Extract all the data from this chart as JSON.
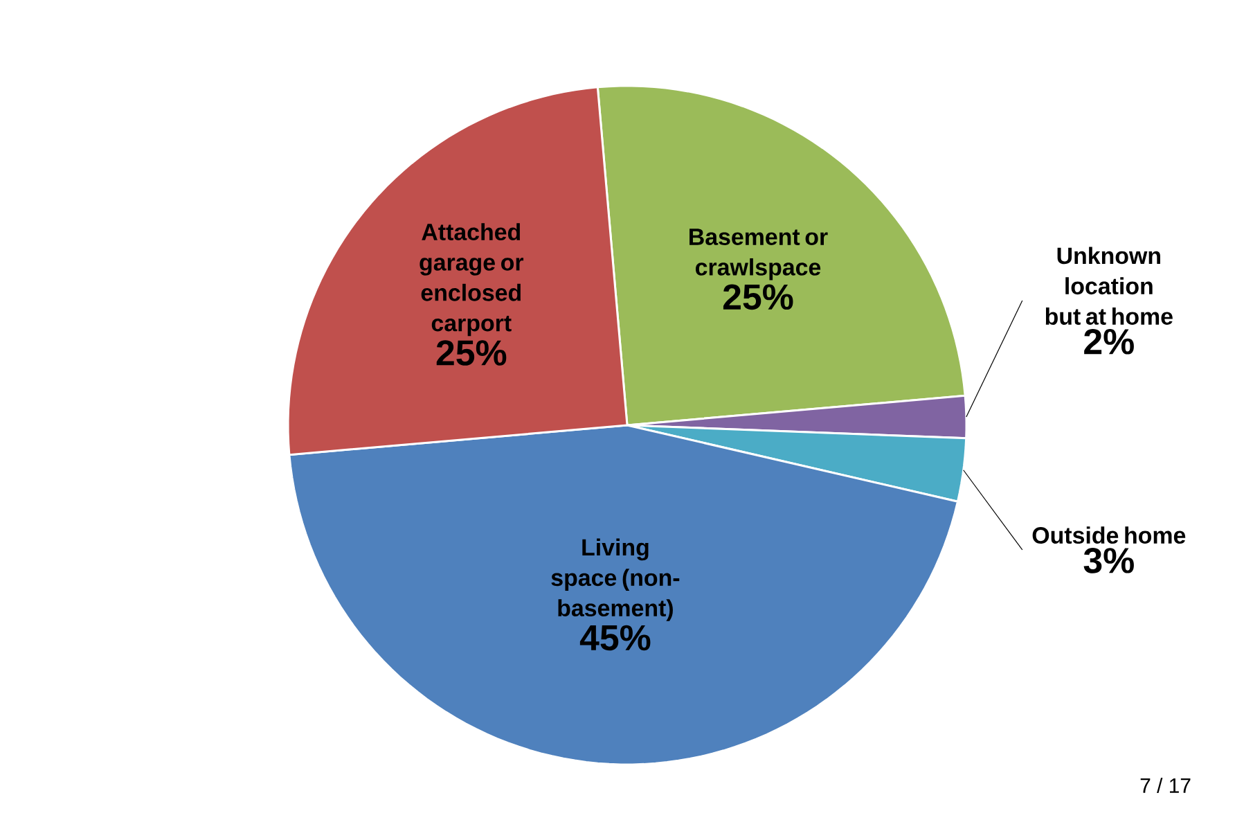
{
  "chart_data": {
    "type": "pie",
    "categories": [
      "Basement or crawlspace",
      "Unknown location but at home",
      "Outside home",
      "Living space (non-basement)",
      "Attached garage or enclosed carport"
    ],
    "values": [
      25,
      2,
      3,
      45,
      25
    ],
    "colors": [
      "#9bbb59",
      "#8064a2",
      "#4bacc6",
      "#4f81bd",
      "#c0504d"
    ],
    "value_labels": [
      "25%",
      "2%",
      "3%",
      "45%",
      "25%"
    ],
    "annotations": [
      "7 / 17"
    ]
  }
}
